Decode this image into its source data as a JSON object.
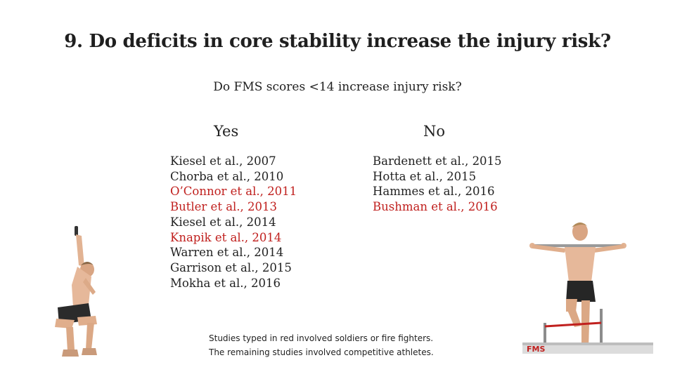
{
  "title": "9. Do deficits in core stability increase the injury risk?",
  "subtitle": "Do FMS scores <14 increase injury risk?",
  "columns": {
    "yes": {
      "heading": "Yes",
      "studies": [
        {
          "text": "Kiesel et al., 2007",
          "military": false
        },
        {
          "text": "Chorba et al., 2010",
          "military": false
        },
        {
          "text": "O’Connor et al., 2011",
          "military": true
        },
        {
          "text": "Butler et al., 2013",
          "military": true
        },
        {
          "text": "Kiesel et al., 2014",
          "military": false
        },
        {
          "text": "Knapik et al., 2014",
          "military": true
        },
        {
          "text": "Warren et al., 2014",
          "military": false
        },
        {
          "text": "Garrison et al., 2015",
          "military": false
        },
        {
          "text": "Mokha et al., 2016",
          "military": false
        }
      ]
    },
    "no": {
      "heading": "No",
      "studies": [
        {
          "text": "Bardenett et al., 2015",
          "military": false
        },
        {
          "text": "Hotta et al., 2015",
          "military": false
        },
        {
          "text": "Hammes et al., 2016",
          "military": false
        },
        {
          "text": "Bushman et al., 2016",
          "military": true
        }
      ]
    }
  },
  "note": {
    "line1": "Studies typed in red involved soldiers or fire fighters.",
    "line2": "The remaining studies involved competitive athletes."
  },
  "colors": {
    "highlight": "#c0201e",
    "normal": "#222222"
  },
  "figures": {
    "left": "overhead-squat-photo",
    "right": "hurdle-step-photo",
    "right_logo_text": "FMS"
  }
}
